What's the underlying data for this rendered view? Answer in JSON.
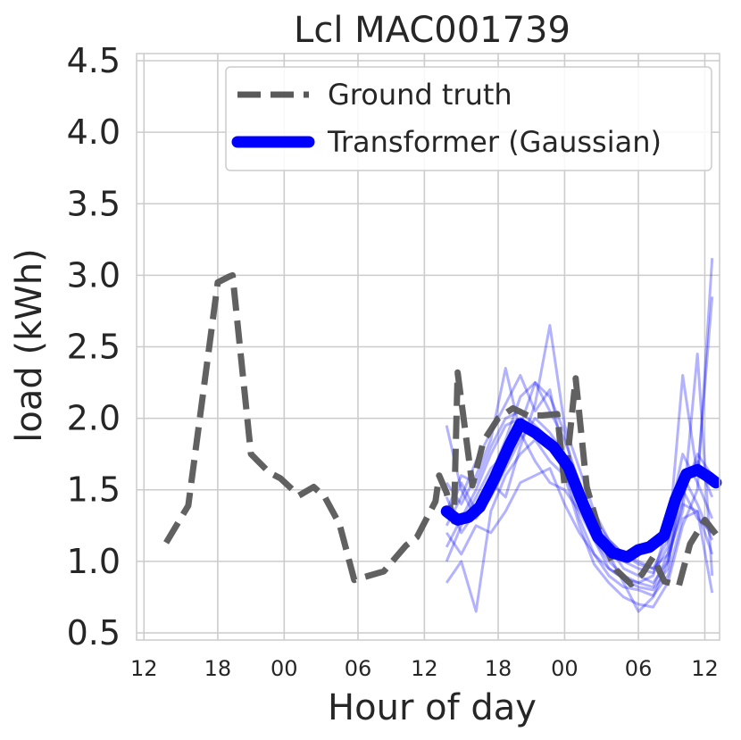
{
  "chart_data": {
    "type": "line",
    "title": "Lcl MAC001739",
    "xlabel": "Hour of day",
    "ylabel": "load (kWh)",
    "xlim": [
      -1,
      78
    ],
    "ylim": [
      0.45,
      4.55
    ],
    "x_ticks": [
      0,
      10,
      19,
      29,
      38,
      48,
      57,
      67,
      76
    ],
    "x_tick_labels": [
      "12",
      "18",
      "00",
      "06",
      "12",
      "18",
      "00",
      "06",
      "12"
    ],
    "y_ticks": [
      0.5,
      1.0,
      1.5,
      2.0,
      2.5,
      3.0,
      3.5,
      4.0,
      4.5
    ],
    "y_tick_labels": [
      "0.5",
      "1.0",
      "1.5",
      "2.0",
      "2.5",
      "3.0",
      "3.5",
      "4.0",
      "4.5"
    ],
    "grid": true,
    "legend_position": "upper-right",
    "series": [
      {
        "name": "Ground truth",
        "style": "dashed",
        "color": "#595959",
        "x": [
          3,
          6,
          10,
          11.5,
          12,
          14.5,
          17,
          18.5,
          21,
          23,
          24.5,
          26.5,
          28.5,
          32.5,
          35.5,
          37,
          39.5,
          40,
          41,
          42,
          42.5,
          44.5,
          46,
          48,
          50,
          52,
          54,
          56,
          57,
          58.5,
          60,
          62,
          64,
          66,
          67.5,
          69,
          70.5,
          72.5,
          74,
          76,
          77.5
        ],
        "y": [
          1.13,
          1.39,
          2.95,
          2.99,
          3.0,
          1.75,
          1.62,
          1.58,
          1.46,
          1.52,
          1.45,
          1.26,
          0.87,
          0.93,
          1.11,
          1.17,
          1.42,
          1.6,
          1.48,
          1.28,
          2.32,
          1.53,
          1.84,
          2.0,
          2.07,
          2.02,
          2.02,
          2.03,
          1.53,
          2.28,
          1.52,
          1.16,
          0.94,
          0.84,
          0.91,
          1.03,
          0.86,
          0.83,
          1.12,
          1.29,
          1.19
        ]
      },
      {
        "name": "Transformer (Gaussian)",
        "style": "solid",
        "color": "#0000ff",
        "x": [
          41,
          42.5,
          44,
          45.5,
          47.5,
          49.5,
          51,
          53,
          55.5,
          57.5,
          59.5,
          61.5,
          63.5,
          65.5,
          67,
          68.5,
          70.5,
          72,
          73.5,
          75,
          76.5,
          77.5
        ],
        "y": [
          1.35,
          1.29,
          1.31,
          1.38,
          1.58,
          1.81,
          1.96,
          1.9,
          1.8,
          1.66,
          1.4,
          1.17,
          1.06,
          1.03,
          1.08,
          1.1,
          1.18,
          1.43,
          1.61,
          1.64,
          1.59,
          1.55
        ]
      }
    ],
    "samples": {
      "color": "#0000ff",
      "x": [
        41,
        43,
        45,
        47,
        49,
        51,
        53,
        55,
        57,
        59,
        61,
        63,
        65,
        67,
        69,
        71,
        73,
        75,
        77
      ],
      "lines": [
        [
          1.25,
          1.45,
          1.7,
          1.9,
          2.1,
          2.3,
          2.05,
          2.2,
          1.7,
          1.5,
          1.2,
          1.1,
          0.95,
          0.9,
          0.85,
          1.0,
          1.45,
          1.75,
          1.6
        ],
        [
          1.1,
          1.3,
          1.5,
          1.75,
          1.95,
          2.0,
          1.9,
          1.8,
          1.65,
          1.3,
          1.05,
          0.95,
          0.88,
          0.82,
          0.8,
          0.95,
          1.6,
          1.4,
          1.15
        ],
        [
          1.45,
          1.2,
          1.35,
          1.6,
          1.85,
          2.15,
          2.25,
          2.05,
          1.85,
          1.55,
          1.3,
          1.05,
          1.0,
          0.95,
          0.92,
          1.1,
          2.3,
          1.6,
          2.85
        ],
        [
          0.85,
          1.0,
          0.65,
          1.35,
          1.6,
          1.75,
          1.85,
          1.7,
          1.6,
          1.25,
          0.98,
          0.85,
          0.75,
          0.7,
          0.68,
          0.85,
          1.25,
          1.5,
          3.12
        ],
        [
          1.3,
          1.55,
          1.35,
          1.55,
          1.45,
          1.8,
          2.1,
          2.65,
          1.95,
          1.65,
          1.35,
          1.15,
          1.05,
          1.0,
          0.95,
          1.15,
          1.5,
          1.3,
          1.2
        ],
        [
          1.55,
          1.4,
          1.6,
          1.85,
          2.35,
          1.9,
          1.7,
          1.55,
          1.5,
          1.35,
          1.15,
          1.0,
          0.9,
          0.85,
          0.82,
          1.05,
          1.35,
          2.45,
          0.9
        ],
        [
          1.2,
          1.05,
          1.25,
          1.2,
          1.35,
          1.55,
          1.6,
          1.65,
          1.4,
          1.2,
          1.05,
          0.9,
          0.82,
          0.8,
          0.76,
          0.9,
          1.3,
          1.35,
          0.78
        ],
        [
          1.0,
          1.25,
          1.45,
          1.65,
          1.75,
          1.95,
          2.25,
          2.15,
          1.9,
          1.45,
          1.15,
          0.95,
          0.88,
          0.85,
          0.9,
          1.25,
          1.75,
          1.55,
          1.3
        ],
        [
          1.35,
          1.6,
          1.55,
          1.8,
          2.0,
          2.05,
          1.95,
          1.85,
          1.7,
          1.5,
          1.25,
          1.05,
          0.85,
          0.65,
          0.75,
          1.0,
          1.4,
          1.35,
          1.05
        ],
        [
          1.95,
          1.5,
          1.3,
          1.45,
          1.65,
          1.85,
          2.0,
          1.9,
          1.75,
          1.55,
          1.3,
          1.15,
          1.05,
          0.98,
          0.95,
          1.05,
          1.55,
          1.7,
          1.45
        ]
      ]
    }
  }
}
